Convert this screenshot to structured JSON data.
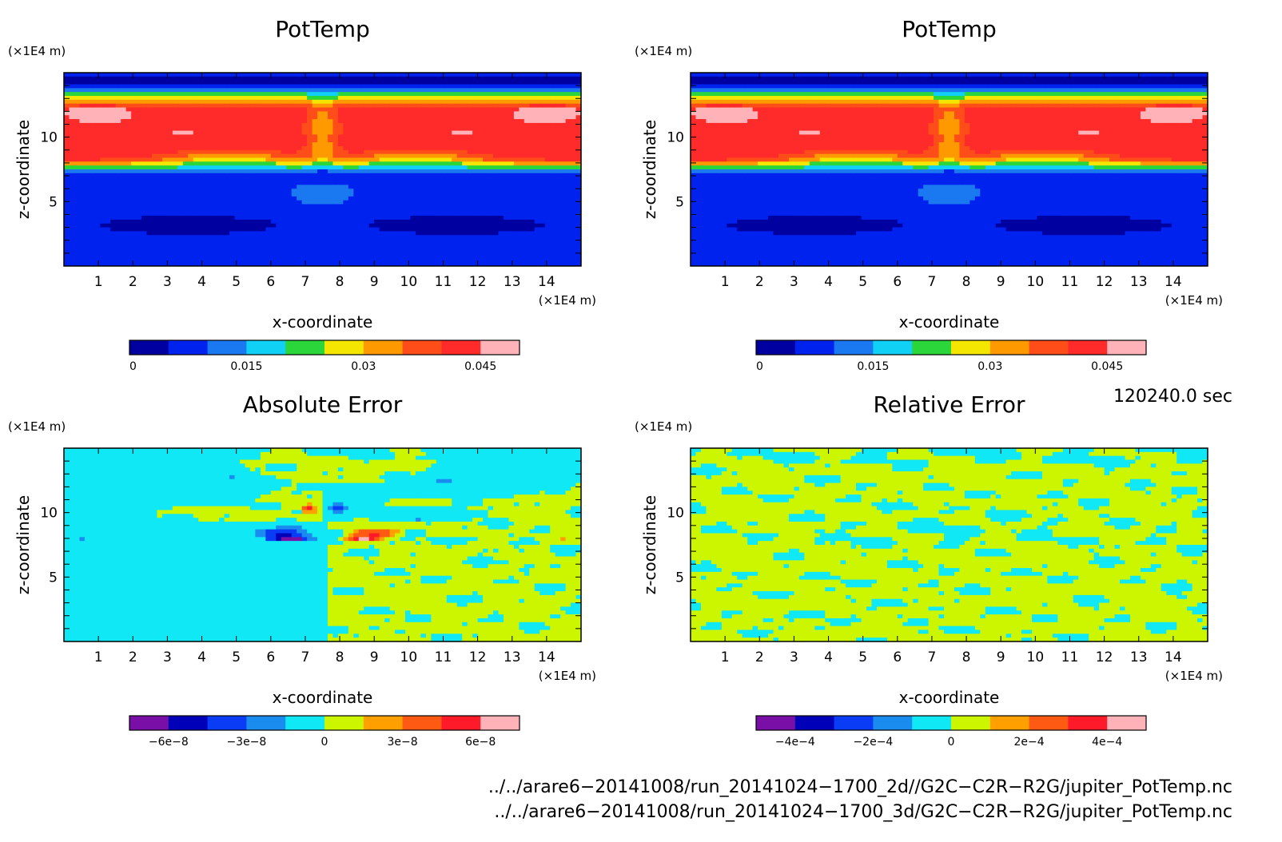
{
  "chart_data": [
    {
      "type": "heatmap",
      "title": "PotTemp",
      "xlabel": "x-coordinate",
      "ylabel": "z-coordinate",
      "x_unit": "(×1E4 m)",
      "y_unit": "(×1E4 m)",
      "xlim": [
        0,
        15
      ],
      "ylim": [
        0,
        15
      ],
      "x_ticks": [
        1,
        2,
        3,
        4,
        5,
        6,
        7,
        8,
        9,
        10,
        11,
        12,
        13,
        14
      ],
      "y_ticks": [
        5,
        10
      ],
      "field": "pottemp",
      "colorbar": {
        "levels": [
          0,
          0.005,
          0.01,
          0.015,
          0.02,
          0.025,
          0.03,
          0.035,
          0.04,
          0.045,
          0.05
        ],
        "colors": [
          "#0000a0",
          "#0022ee",
          "#1a78f0",
          "#10d0f5",
          "#2ad63a",
          "#f5e600",
          "#ff9900",
          "#ff4d1a",
          "#ff2a2a",
          "#ffb3b8"
        ],
        "tick_values": [
          0,
          0.015,
          0.03,
          0.045
        ],
        "tick_labels": [
          "0",
          "0.015",
          "0.03",
          "0.045"
        ]
      }
    },
    {
      "type": "heatmap",
      "title": "PotTemp",
      "xlabel": "x-coordinate",
      "ylabel": "z-coordinate",
      "x_unit": "(×1E4 m)",
      "y_unit": "(×1E4 m)",
      "xlim": [
        0,
        15
      ],
      "ylim": [
        0,
        15
      ],
      "x_ticks": [
        1,
        2,
        3,
        4,
        5,
        6,
        7,
        8,
        9,
        10,
        11,
        12,
        13,
        14
      ],
      "y_ticks": [
        5,
        10
      ],
      "field": "pottemp",
      "colorbar": {
        "levels": [
          0,
          0.005,
          0.01,
          0.015,
          0.02,
          0.025,
          0.03,
          0.035,
          0.04,
          0.045,
          0.05
        ],
        "colors": [
          "#0000a0",
          "#0022ee",
          "#1a78f0",
          "#10d0f5",
          "#2ad63a",
          "#f5e600",
          "#ff9900",
          "#ff4d1a",
          "#ff2a2a",
          "#ffb3b8"
        ],
        "tick_values": [
          0,
          0.015,
          0.03,
          0.045
        ],
        "tick_labels": [
          "0",
          "0.015",
          "0.03",
          "0.045"
        ]
      }
    },
    {
      "type": "heatmap",
      "title": "Absolute Error",
      "xlabel": "x-coordinate",
      "ylabel": "z-coordinate",
      "x_unit": "(×1E4 m)",
      "y_unit": "(×1E4 m)",
      "xlim": [
        0,
        15
      ],
      "ylim": [
        0,
        15
      ],
      "x_ticks": [
        1,
        2,
        3,
        4,
        5,
        6,
        7,
        8,
        9,
        10,
        11,
        12,
        13,
        14
      ],
      "y_ticks": [
        5,
        10
      ],
      "field": "abs_error",
      "colorbar": {
        "levels": [
          -8e-08,
          -6e-08,
          -4.5e-08,
          -3e-08,
          -1.5e-08,
          0,
          1.5e-08,
          3e-08,
          4.5e-08,
          6e-08,
          8e-08
        ],
        "colors": [
          "#7a0fa8",
          "#0000b8",
          "#0a3cf5",
          "#1a8cf0",
          "#10e8f5",
          "#ccf500",
          "#ff9f00",
          "#ff5a14",
          "#ff1a2a",
          "#ffb3b8"
        ],
        "tick_values": [
          -6e-08,
          -3e-08,
          0,
          3e-08,
          6e-08
        ],
        "tick_labels": [
          "−6e−8",
          "−3e−8",
          "0",
          "3e−8",
          "6e−8"
        ]
      }
    },
    {
      "type": "heatmap",
      "title": "Relative Error",
      "xlabel": "x-coordinate",
      "ylabel": "z-coordinate",
      "x_unit": "(×1E4 m)",
      "y_unit": "(×1E4 m)",
      "xlim": [
        0,
        15
      ],
      "ylim": [
        0,
        15
      ],
      "x_ticks": [
        1,
        2,
        3,
        4,
        5,
        6,
        7,
        8,
        9,
        10,
        11,
        12,
        13,
        14
      ],
      "y_ticks": [
        5,
        10
      ],
      "field": "rel_error",
      "colorbar": {
        "levels": [
          -0.0005,
          -0.0004,
          -0.0003,
          -0.0002,
          -0.0001,
          0,
          0.0001,
          0.0002,
          0.0003,
          0.0004,
          0.0005
        ],
        "colors": [
          "#7a0fa8",
          "#0000b8",
          "#0a3cf5",
          "#1a8cf0",
          "#10e8f5",
          "#ccf500",
          "#ff9f00",
          "#ff5a14",
          "#ff1a2a",
          "#ffb3b8"
        ],
        "tick_values": [
          -0.0004,
          -0.0002,
          0,
          0.0002,
          0.0004
        ],
        "tick_labels": [
          "−4e−4",
          "−2e−4",
          "0",
          "2e−4",
          "4e−4"
        ]
      }
    }
  ],
  "footer": {
    "time_label": "120240.0 sec",
    "file_1": "../../arare6−20141008/run_20141024−1700_2d//G2C−C2R−R2G/jupiter_PotTemp.nc",
    "file_2": "../../arare6−20141008/run_20141024−1700_3d/G2C−C2R−R2G/jupiter_PotTemp.nc"
  }
}
